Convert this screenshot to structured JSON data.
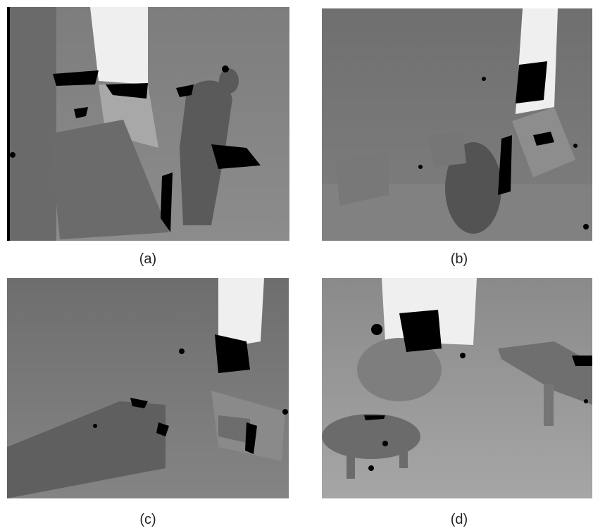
{
  "panels": [
    {
      "id": "a",
      "caption": "(a)"
    },
    {
      "id": "b",
      "caption": "(b)"
    },
    {
      "id": "c",
      "caption": "(c)"
    },
    {
      "id": "d",
      "caption": "(d)"
    }
  ],
  "colors": {
    "background": "#ffffff",
    "hole": "#000000",
    "far": "#efefef",
    "mid": "#7a7a7a",
    "near": "#4d4d4d"
  }
}
